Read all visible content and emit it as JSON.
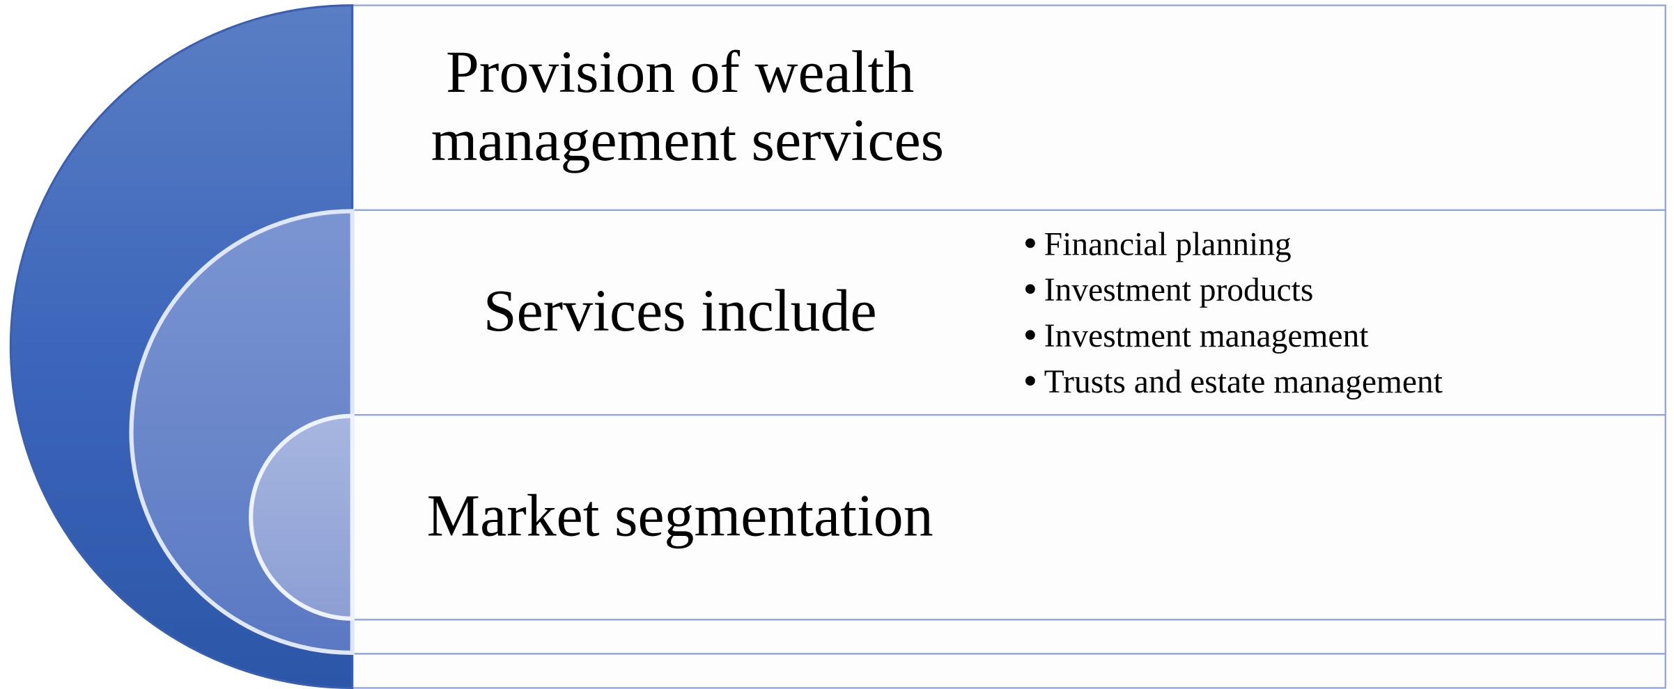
{
  "nodes": [
    {
      "label": "Provision of wealth management services"
    },
    {
      "label": "Services include",
      "bullets": [
        "Financial planning",
        "Investment products",
        "Investment management",
        "Trusts and estate management"
      ]
    },
    {
      "label": "Market segmentation"
    }
  ]
}
